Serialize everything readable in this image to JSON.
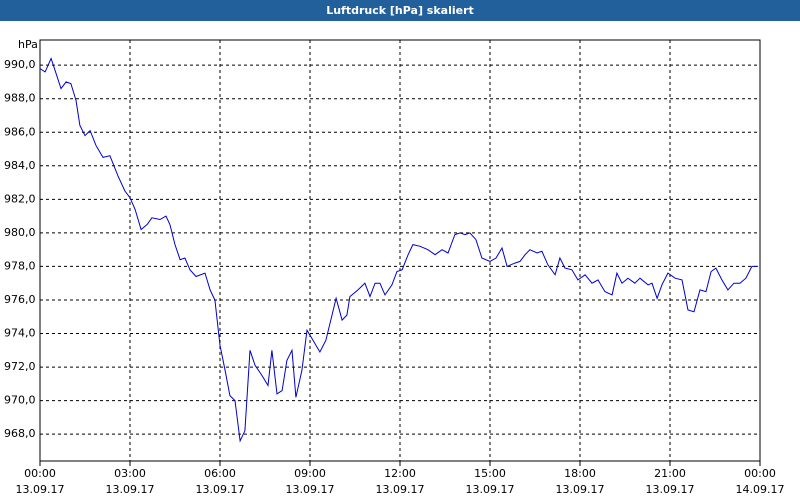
{
  "chart_data": {
    "type": "line",
    "title": "Luftdruck [hPa] skaliert",
    "y_label": "hPa",
    "x": [
      0,
      0.17,
      0.37,
      0.5,
      0.7,
      0.87,
      1.03,
      1.2,
      1.33,
      1.5,
      1.67,
      1.87,
      2.1,
      2.33,
      2.6,
      2.83,
      3,
      3.17,
      3.37,
      3.57,
      3.73,
      4,
      4.2,
      4.33,
      4.5,
      4.67,
      4.83,
      5,
      5.2,
      5.5,
      5.67,
      5.83,
      6,
      6.17,
      6.33,
      6.5,
      6.67,
      6.83,
      7,
      7.17,
      7.4,
      7.6,
      7.73,
      7.9,
      8.07,
      8.23,
      8.4,
      8.53,
      8.73,
      8.9,
      9.1,
      9.33,
      9.53,
      9.87,
      10.07,
      10.23,
      10.33,
      10.6,
      10.83,
      11,
      11.17,
      11.33,
      11.5,
      11.73,
      11.9,
      12.07,
      12.27,
      12.43,
      12.67,
      12.93,
      13.17,
      13.4,
      13.6,
      13.83,
      14,
      14.17,
      14.33,
      14.53,
      14.73,
      15,
      15.2,
      15.4,
      15.57,
      15.83,
      16,
      16.17,
      16.33,
      16.57,
      16.73,
      16.93,
      17.17,
      17.33,
      17.5,
      17.73,
      17.93,
      18.17,
      18.4,
      18.6,
      18.83,
      19.07,
      19.23,
      19.4,
      19.6,
      19.83,
      20,
      20.27,
      20.4,
      20.57,
      20.73,
      20.93,
      21.17,
      21.4,
      21.6,
      21.8,
      22,
      22.2,
      22.37,
      22.53,
      22.73,
      22.93,
      23.13,
      23.33,
      23.53,
      23.73,
      23.93
    ],
    "series": [
      {
        "name": "Luftdruck",
        "color": "#0000cc",
        "values": [
          989.8,
          989.6,
          990.4,
          989.7,
          988.6,
          989.0,
          988.9,
          987.9,
          986.4,
          985.8,
          986.1,
          985.2,
          984.5,
          984.6,
          983.4,
          982.5,
          982.1,
          981.4,
          980.2,
          980.5,
          980.9,
          980.8,
          981.0,
          980.5,
          979.3,
          978.4,
          978.5,
          977.8,
          977.4,
          977.6,
          976.6,
          976.0,
          973.3,
          971.8,
          970.3,
          970.0,
          967.6,
          968.2,
          973.0,
          972.1,
          971.5,
          970.9,
          973.0,
          970.4,
          970.6,
          972.4,
          973.0,
          970.2,
          971.8,
          974.2,
          973.6,
          972.9,
          973.6,
          976.1,
          974.8,
          975.1,
          976.2,
          976.6,
          977.0,
          976.2,
          977.0,
          977.0,
          976.3,
          976.9,
          977.7,
          977.8,
          978.7,
          979.3,
          979.2,
          979.0,
          978.7,
          979.0,
          978.8,
          979.9,
          980.0,
          979.9,
          980.0,
          979.6,
          978.5,
          978.3,
          978.5,
          979.1,
          978.0,
          978.2,
          978.3,
          978.7,
          979.0,
          978.8,
          978.9,
          978.1,
          977.5,
          978.5,
          977.9,
          977.8,
          977.2,
          977.5,
          977.0,
          977.2,
          976.5,
          976.3,
          977.6,
          977.0,
          977.3,
          977.0,
          977.3,
          976.9,
          977.0,
          976.1,
          976.9,
          977.6,
          977.3,
          977.2,
          975.4,
          975.3,
          976.6,
          976.5,
          977.7,
          977.9,
          977.2,
          976.6,
          977.0,
          977.0,
          977.3,
          978.0,
          978.0
        ]
      }
    ],
    "xlim": [
      0,
      24
    ],
    "xticks": [
      {
        "value": 0,
        "label": [
          "00:00",
          "13.09.17"
        ]
      },
      {
        "value": 3,
        "label": [
          "03:00",
          "13.09.17"
        ]
      },
      {
        "value": 6,
        "label": [
          "06:00",
          "13.09.17"
        ]
      },
      {
        "value": 9,
        "label": [
          "09:00",
          "13.09.17"
        ]
      },
      {
        "value": 12,
        "label": [
          "12:00",
          "13.09.17"
        ]
      },
      {
        "value": 15,
        "label": [
          "15:00",
          "13.09.17"
        ]
      },
      {
        "value": 18,
        "label": [
          "18:00",
          "13.09.17"
        ]
      },
      {
        "value": 21,
        "label": [
          "21:00",
          "13.09.17"
        ]
      },
      {
        "value": 24,
        "label": [
          "00:00",
          "14.09.17"
        ]
      }
    ],
    "ylim": [
      966.4,
      991.5
    ],
    "yticks": [
      {
        "value": 968,
        "label": "968,0"
      },
      {
        "value": 970,
        "label": "970,0"
      },
      {
        "value": 972,
        "label": "972,0"
      },
      {
        "value": 974,
        "label": "974,0"
      },
      {
        "value": 976,
        "label": "976,0"
      },
      {
        "value": 978,
        "label": "978,0"
      },
      {
        "value": 980,
        "label": "980,0"
      },
      {
        "value": 982,
        "label": "982,0"
      },
      {
        "value": 984,
        "label": "984,0"
      },
      {
        "value": 986,
        "label": "986,0"
      },
      {
        "value": 988,
        "label": "988,0"
      },
      {
        "value": 990,
        "label": "990,0"
      }
    ],
    "grid": true
  }
}
